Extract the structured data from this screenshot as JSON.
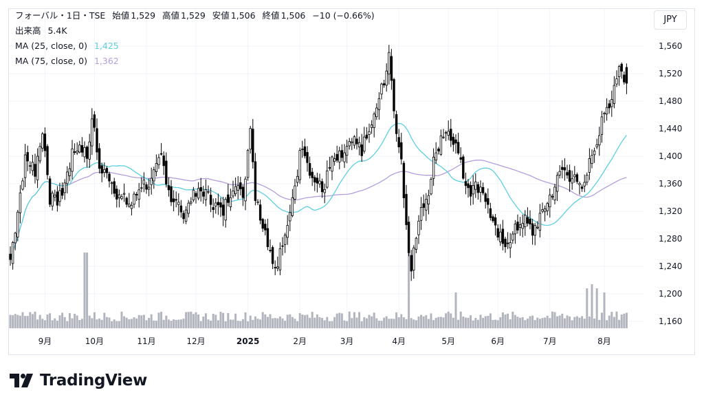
{
  "header": {
    "symbol": "フォーバル・1日・TSE",
    "open_label": "始値",
    "open": "1,529",
    "high_label": "高値",
    "high": "1,529",
    "low_label": "安値",
    "low": "1,506",
    "close_label": "終値",
    "close": "1,506",
    "change": "−10 (−0.66%)",
    "volume_label": "出来高",
    "volume": "5.4K",
    "ma25_label": "MA (25, close, 0)",
    "ma25_value": "1,425",
    "ma75_label": "MA (75, close, 0)",
    "ma75_value": "1,362"
  },
  "currency": "JPY",
  "branding": {
    "name": "TradingView"
  },
  "colors": {
    "candle": "#000000",
    "ma25": "#5ccfe0",
    "ma75": "#b39ddb",
    "volume": "#b2b5be",
    "grid": "#f0f3fa"
  },
  "chart_data": {
    "type": "candlestick",
    "y_ticks": [
      1560,
      1520,
      1480,
      1440,
      1400,
      1360,
      1320,
      1280,
      1240,
      1200,
      1160
    ],
    "y_tick_labels": [
      "1,560",
      "1,520",
      "1,480",
      "1,440",
      "1,400",
      "1,360",
      "1,320",
      "1,280",
      "1,240",
      "1,200",
      "1,160"
    ],
    "ylim": [
      1140,
      1580
    ],
    "x_tick_labels": [
      "9月",
      "10月",
      "11月",
      "12月",
      "2025",
      "2月",
      "3月",
      "4月",
      "5月",
      "6月",
      "7月",
      "8月"
    ],
    "x_tick_bar_index": [
      14,
      34,
      55,
      75,
      96,
      117,
      136,
      157,
      177,
      197,
      218,
      240
    ],
    "bar_count": 250,
    "anchors": [
      [
        0,
        1250
      ],
      [
        3,
        1320
      ],
      [
        6,
        1400
      ],
      [
        10,
        1380
      ],
      [
        13,
        1440
      ],
      [
        16,
        1340
      ],
      [
        19,
        1330
      ],
      [
        22,
        1360
      ],
      [
        25,
        1400
      ],
      [
        28,
        1420
      ],
      [
        31,
        1400
      ],
      [
        33,
        1460
      ],
      [
        36,
        1380
      ],
      [
        40,
        1370
      ],
      [
        44,
        1340
      ],
      [
        49,
        1330
      ],
      [
        53,
        1360
      ],
      [
        57,
        1360
      ],
      [
        61,
        1400
      ],
      [
        65,
        1340
      ],
      [
        70,
        1320
      ],
      [
        74,
        1340
      ],
      [
        78,
        1350
      ],
      [
        82,
        1330
      ],
      [
        86,
        1320
      ],
      [
        90,
        1360
      ],
      [
        94,
        1340
      ],
      [
        97,
        1450
      ],
      [
        99,
        1340
      ],
      [
        103,
        1290
      ],
      [
        107,
        1240
      ],
      [
        112,
        1290
      ],
      [
        115,
        1360
      ],
      [
        118,
        1420
      ],
      [
        122,
        1370
      ],
      [
        126,
        1350
      ],
      [
        130,
        1390
      ],
      [
        134,
        1400
      ],
      [
        138,
        1420
      ],
      [
        142,
        1410
      ],
      [
        146,
        1440
      ],
      [
        150,
        1500
      ],
      [
        153,
        1540
      ],
      [
        156,
        1440
      ],
      [
        158,
        1400
      ],
      [
        160,
        1300
      ],
      [
        162,
        1240
      ],
      [
        165,
        1310
      ],
      [
        168,
        1330
      ],
      [
        171,
        1390
      ],
      [
        174,
        1430
      ],
      [
        177,
        1440
      ],
      [
        180,
        1420
      ],
      [
        183,
        1370
      ],
      [
        186,
        1350
      ],
      [
        190,
        1360
      ],
      [
        193,
        1330
      ],
      [
        196,
        1290
      ],
      [
        199,
        1275
      ],
      [
        203,
        1285
      ],
      [
        207,
        1310
      ],
      [
        211,
        1290
      ],
      [
        215,
        1320
      ],
      [
        219,
        1350
      ],
      [
        223,
        1380
      ],
      [
        227,
        1370
      ],
      [
        231,
        1345
      ],
      [
        234,
        1400
      ],
      [
        237,
        1420
      ],
      [
        240,
        1460
      ],
      [
        243,
        1490
      ],
      [
        246,
        1530
      ],
      [
        249,
        1506
      ]
    ],
    "volume_spikes": {
      "30": 34,
      "31": 24,
      "161": 20,
      "180": 8,
      "233": 9,
      "235": 10,
      "237": 9,
      "240": 8
    }
  }
}
